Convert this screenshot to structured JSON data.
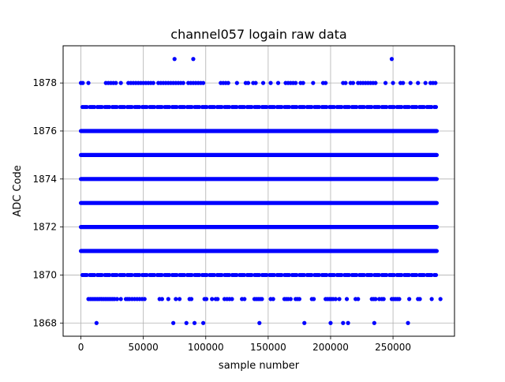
{
  "chart_data": {
    "type": "scatter",
    "title": "channel057 logain raw data",
    "xlabel": "sample number",
    "ylabel": "ADC Code",
    "xlim": [
      -14250,
      299250
    ],
    "ylim": [
      1867.45,
      1879.55
    ],
    "xticks": [
      0,
      50000,
      100000,
      150000,
      200000,
      250000
    ],
    "xtick_labels": [
      "0",
      "50000",
      "100000",
      "150000",
      "200000",
      "250000"
    ],
    "yticks": [
      1868,
      1870,
      1872,
      1874,
      1876,
      1878
    ],
    "ytick_labels": [
      "1868",
      "1870",
      "1872",
      "1874",
      "1876",
      "1878"
    ],
    "grid": true,
    "legend": "none",
    "marker": "circle",
    "color": "#0000ff",
    "series": [
      {
        "dense_levels": [
          1871,
          1872,
          1873,
          1874,
          1875,
          1876
        ],
        "x_range": [
          0,
          285000
        ],
        "semi_dense_levels": [
          {
            "y": 1870,
            "x_range": [
              0,
              285000
            ]
          },
          {
            "y": 1877,
            "x_range": [
              0,
              285000
            ]
          }
        ],
        "sparse_points": [
          {
            "y": 1869,
            "x": [
              6000,
              7500,
              9000,
              10500,
              12000,
              13500,
              15000,
              16500,
              18000,
              19500,
              21000,
              22500,
              24000,
              25500,
              27000,
              29000,
              32000,
              36000,
              37500,
              39000,
              41000,
              43000,
              45000,
              47000,
              49000,
              51000,
              63000,
              65000,
              70000,
              76000,
              79000,
              87000,
              88500,
              99000,
              100500,
              105000,
              108000,
              109500,
              115000,
              117000,
              119000,
              121000,
              129000,
              131000,
              139000,
              140500,
              142000,
              143500,
              145000,
              152000,
              154000,
              163000,
              164500,
              166000,
              168000,
              172000,
              173500,
              175000,
              185000,
              186500,
              196000,
              197500,
              199000,
              200500,
              202000,
              204000,
              207000,
              213000,
              220000,
              222000,
              233000,
              234500,
              236000,
              239000,
              241000,
              242500,
              249000,
              250500,
              252000,
              253500,
              255000,
              263000,
              270000,
              271500,
              281000,
              288000
            ]
          },
          {
            "y": 1868,
            "x": [
              12500,
              74000,
              84500,
              91000,
              98000,
              143000,
              179000,
              200000,
              210000,
              214000,
              235000,
              262000
            ]
          },
          {
            "y": 1878,
            "x": [
              0,
              1500,
              6000,
              20000,
              22000,
              24000,
              26000,
              28000,
              32000,
              38000,
              40000,
              42000,
              44000,
              46000,
              48000,
              50000,
              52000,
              54000,
              56000,
              58000,
              62000,
              64000,
              66000,
              68000,
              70000,
              72000,
              74000,
              76000,
              78000,
              80000,
              82000,
              86000,
              88000,
              90000,
              92000,
              94000,
              96000,
              98000,
              112000,
              114000,
              116000,
              118000,
              125000,
              132000,
              134000,
              138000,
              140000,
              146000,
              152000,
              158000,
              164000,
              166000,
              168000,
              170000,
              172000,
              176000,
              178000,
              186000,
              194000,
              196000,
              210000,
              212000,
              216000,
              218000,
              222000,
              224000,
              226000,
              228000,
              230000,
              232000,
              234000,
              236000,
              244000,
              250000,
              256000,
              258000,
              264000,
              270000,
              276000,
              280000,
              282000,
              284000
            ]
          },
          {
            "y": 1879,
            "x": [
              75000,
              90000,
              249000
            ]
          }
        ]
      }
    ]
  }
}
